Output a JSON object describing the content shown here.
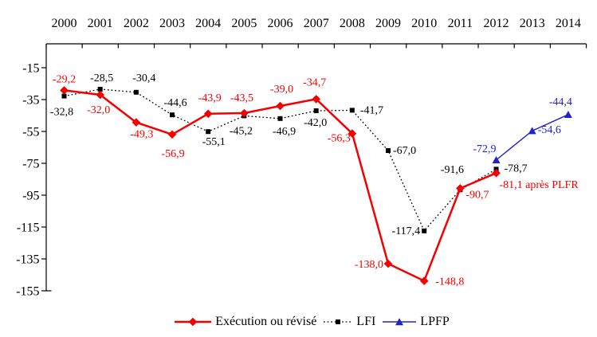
{
  "chart_data": {
    "type": "line",
    "title": "",
    "grid": false,
    "legend_position": "bottom",
    "x_categories": [
      "2000",
      "2001",
      "2002",
      "2003",
      "2004",
      "2005",
      "2006",
      "2007",
      "2008",
      "2009",
      "2010",
      "2011",
      "2012",
      "2013",
      "2014"
    ],
    "y_ticks": [
      -15,
      -35,
      -55,
      -75,
      -95,
      -115,
      -135,
      -155
    ],
    "y_range": [
      0,
      -170
    ],
    "series": [
      {
        "name": "Exécution ou révisé",
        "slug": "execution-ou-revise",
        "color": "#f40000",
        "marker": "diamond",
        "line_style": "solid",
        "line_width": 2.5,
        "points": [
          {
            "x": 2000,
            "y": -29.2,
            "label": "-29,2",
            "anchor": "middle",
            "dx": 0,
            "dy": -10
          },
          {
            "x": 2001,
            "y": -32.0,
            "label": "-32,0",
            "anchor": "middle",
            "dx": -2,
            "dy": 23
          },
          {
            "x": 2002,
            "y": -49.3,
            "label": "-49,3",
            "anchor": "middle",
            "dx": 7,
            "dy": 19
          },
          {
            "x": 2003,
            "y": -56.9,
            "label": "-56,9",
            "anchor": "middle",
            "dx": 1,
            "dy": 28
          },
          {
            "x": 2004,
            "y": -43.9,
            "label": "-43,9",
            "anchor": "middle",
            "dx": 2,
            "dy": -16
          },
          {
            "x": 2005,
            "y": -43.5,
            "label": "-43,5",
            "anchor": "middle",
            "dx": -3,
            "dy": -15
          },
          {
            "x": 2006,
            "y": -39.0,
            "label": "-39,0",
            "anchor": "middle",
            "dx": 2,
            "dy": -17
          },
          {
            "x": 2007,
            "y": -34.7,
            "label": "-34,7",
            "anchor": "middle",
            "dx": -2,
            "dy": -17
          },
          {
            "x": 2008,
            "y": -56.3,
            "label": "-56,3",
            "anchor": "end",
            "dx": -2,
            "dy": 10
          },
          {
            "x": 2009,
            "y": -138.0,
            "label": "-138,0",
            "anchor": "end",
            "dx": -6,
            "dy": 5
          },
          {
            "x": 2010,
            "y": -148.8,
            "label": "-148,8",
            "anchor": "start",
            "dx": 14,
            "dy": 5
          },
          {
            "x": 2011,
            "y": -90.7,
            "label": "-90,7",
            "anchor": "start",
            "dx": 7,
            "dy": 12
          },
          {
            "x": 2012,
            "y": -81.1,
            "label": "-81,1 après PLFR",
            "anchor": "start",
            "dx": 4,
            "dy": 19
          }
        ]
      },
      {
        "name": "LFI",
        "slug": "lfi",
        "color": "#000000",
        "marker": "square",
        "line_style": "dotted",
        "line_width": 1.3,
        "points": [
          {
            "x": 2000,
            "y": -32.8,
            "label": "-32,8",
            "anchor": "middle",
            "dx": -3,
            "dy": 24
          },
          {
            "x": 2001,
            "y": -28.5,
            "label": "-28,5",
            "anchor": "middle",
            "dx": 2,
            "dy": -10
          },
          {
            "x": 2002,
            "y": -30.4,
            "label": "-30,4",
            "anchor": "middle",
            "dx": 10,
            "dy": -14
          },
          {
            "x": 2003,
            "y": -44.6,
            "label": "-44,6",
            "anchor": "middle",
            "dx": 4,
            "dy": -11
          },
          {
            "x": 2004,
            "y": -55.1,
            "label": "-55,1",
            "anchor": "middle",
            "dx": 7,
            "dy": 17
          },
          {
            "x": 2005,
            "y": -45.2,
            "label": "-45,2",
            "anchor": "middle",
            "dx": -4,
            "dy": 23
          },
          {
            "x": 2006,
            "y": -46.9,
            "label": "-46,9",
            "anchor": "middle",
            "dx": 5,
            "dy": 20
          },
          {
            "x": 2007,
            "y": -42.0,
            "label": "-42,0",
            "anchor": "middle",
            "dx": -1,
            "dy": 19
          },
          {
            "x": 2008,
            "y": -41.7,
            "label": "-41,7",
            "anchor": "start",
            "dx": 10,
            "dy": 4
          },
          {
            "x": 2009,
            "y": -67.0,
            "label": "-67,0",
            "anchor": "start",
            "dx": 6,
            "dy": 4
          },
          {
            "x": 2010,
            "y": -117.4,
            "label": "-117,4",
            "anchor": "end",
            "dx": -5,
            "dy": 4
          },
          {
            "x": 2011,
            "y": -91.6,
            "label": "-91,6",
            "anchor": "middle",
            "dx": -10,
            "dy": -21
          },
          {
            "x": 2012,
            "y": -78.7,
            "label": "-78,7",
            "anchor": "start",
            "dx": 10,
            "dy": 3
          }
        ]
      },
      {
        "name": "LPFP",
        "slug": "lpfp",
        "color": "#2222cc",
        "marker": "triangle",
        "line_style": "solid",
        "line_width": 1.4,
        "points": [
          {
            "x": 2012,
            "y": -72.9,
            "label": "-72,9",
            "anchor": "end",
            "dx": 0,
            "dy": -10
          },
          {
            "x": 2013,
            "y": -54.6,
            "label": "-54,6",
            "anchor": "start",
            "dx": 7,
            "dy": 3
          },
          {
            "x": 2014,
            "y": -44.4,
            "label": "-44,4",
            "anchor": "end",
            "dx": 5,
            "dy": -12
          }
        ]
      }
    ]
  }
}
